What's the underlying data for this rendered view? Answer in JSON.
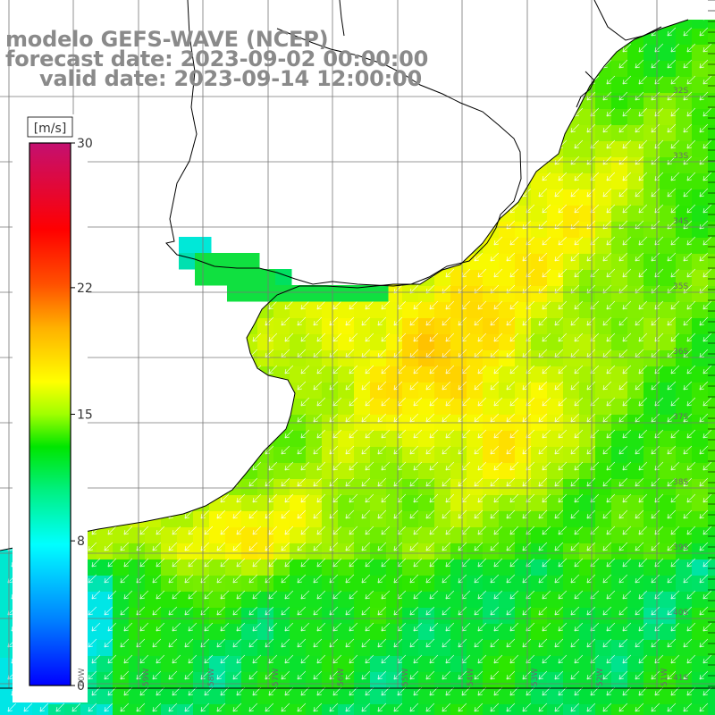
{
  "title": {
    "line1": "modelo GEFS-WAVE (NCEP)",
    "line2": "forecast date: 2023-09-02 00:00:00",
    "line3": "valid date: 2023-09-14 12:00:00"
  },
  "colorbar": {
    "unit": "[m/s]",
    "ticks": [
      "30",
      "22",
      "15",
      "8",
      "0"
    ],
    "tick_values": [
      30,
      22,
      15,
      8,
      0
    ],
    "range": [
      0,
      30
    ],
    "colors": [
      "#0000ff",
      "#00bfff",
      "#00ffff",
      "#00e600",
      "#7fff00",
      "#ffff00",
      "#ff8c00",
      "#ff0000",
      "#c71585"
    ]
  },
  "latitude_labels": [
    "32S",
    "33S",
    "34S",
    "35S",
    "36S",
    "37S",
    "38S",
    "39S",
    "40S",
    "41S"
  ],
  "longitude_labels": [
    "60W",
    "59W",
    "58W",
    "57W",
    "56W",
    "55W",
    "54W",
    "53W",
    "52W",
    "51W"
  ],
  "colors": {
    "land": "#ffffff",
    "coast": "#000000",
    "grid": "#777777",
    "arrow": "#ffffff",
    "title": "#8a8a8a"
  }
}
